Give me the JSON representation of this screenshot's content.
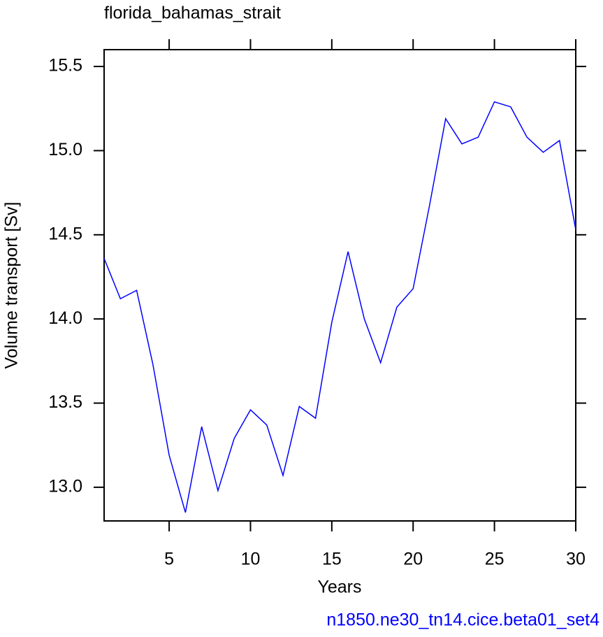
{
  "chart_data": {
    "type": "line",
    "title": "florida_bahamas_strait",
    "x_label": "Years",
    "y_label": "Volume transport [Sv]",
    "footnote": "n1850.ne30_tn14.cice.beta01_set4",
    "x": [
      1,
      2,
      3,
      4,
      5,
      6,
      7,
      8,
      9,
      10,
      11,
      12,
      13,
      14,
      15,
      16,
      17,
      18,
      19,
      20,
      21,
      22,
      23,
      24,
      25,
      26,
      27,
      28,
      29,
      30
    ],
    "series": [
      {
        "name": "volume transport",
        "color": "#0000ff",
        "values": [
          14.36,
          14.12,
          14.17,
          13.73,
          13.19,
          12.85,
          13.36,
          12.98,
          13.29,
          13.46,
          13.37,
          13.07,
          13.48,
          13.41,
          13.98,
          14.4,
          14.0,
          13.74,
          14.07,
          14.18,
          14.67,
          15.19,
          15.04,
          15.08,
          15.29,
          15.26,
          15.08,
          14.99,
          15.06,
          14.53
        ]
      }
    ],
    "xlim": [
      1,
      30
    ],
    "xticks": [
      5,
      10,
      15,
      20,
      25,
      30
    ],
    "ylim": [
      12.8,
      15.6
    ],
    "yticks": [
      {
        "value": 13.0,
        "label": "13.0"
      },
      13.5,
      {
        "value": 14.0,
        "label": "14.0"
      },
      14.5,
      {
        "value": 15.0,
        "label": "15.0"
      },
      15.5
    ],
    "footnote_color": "#0000ff"
  }
}
